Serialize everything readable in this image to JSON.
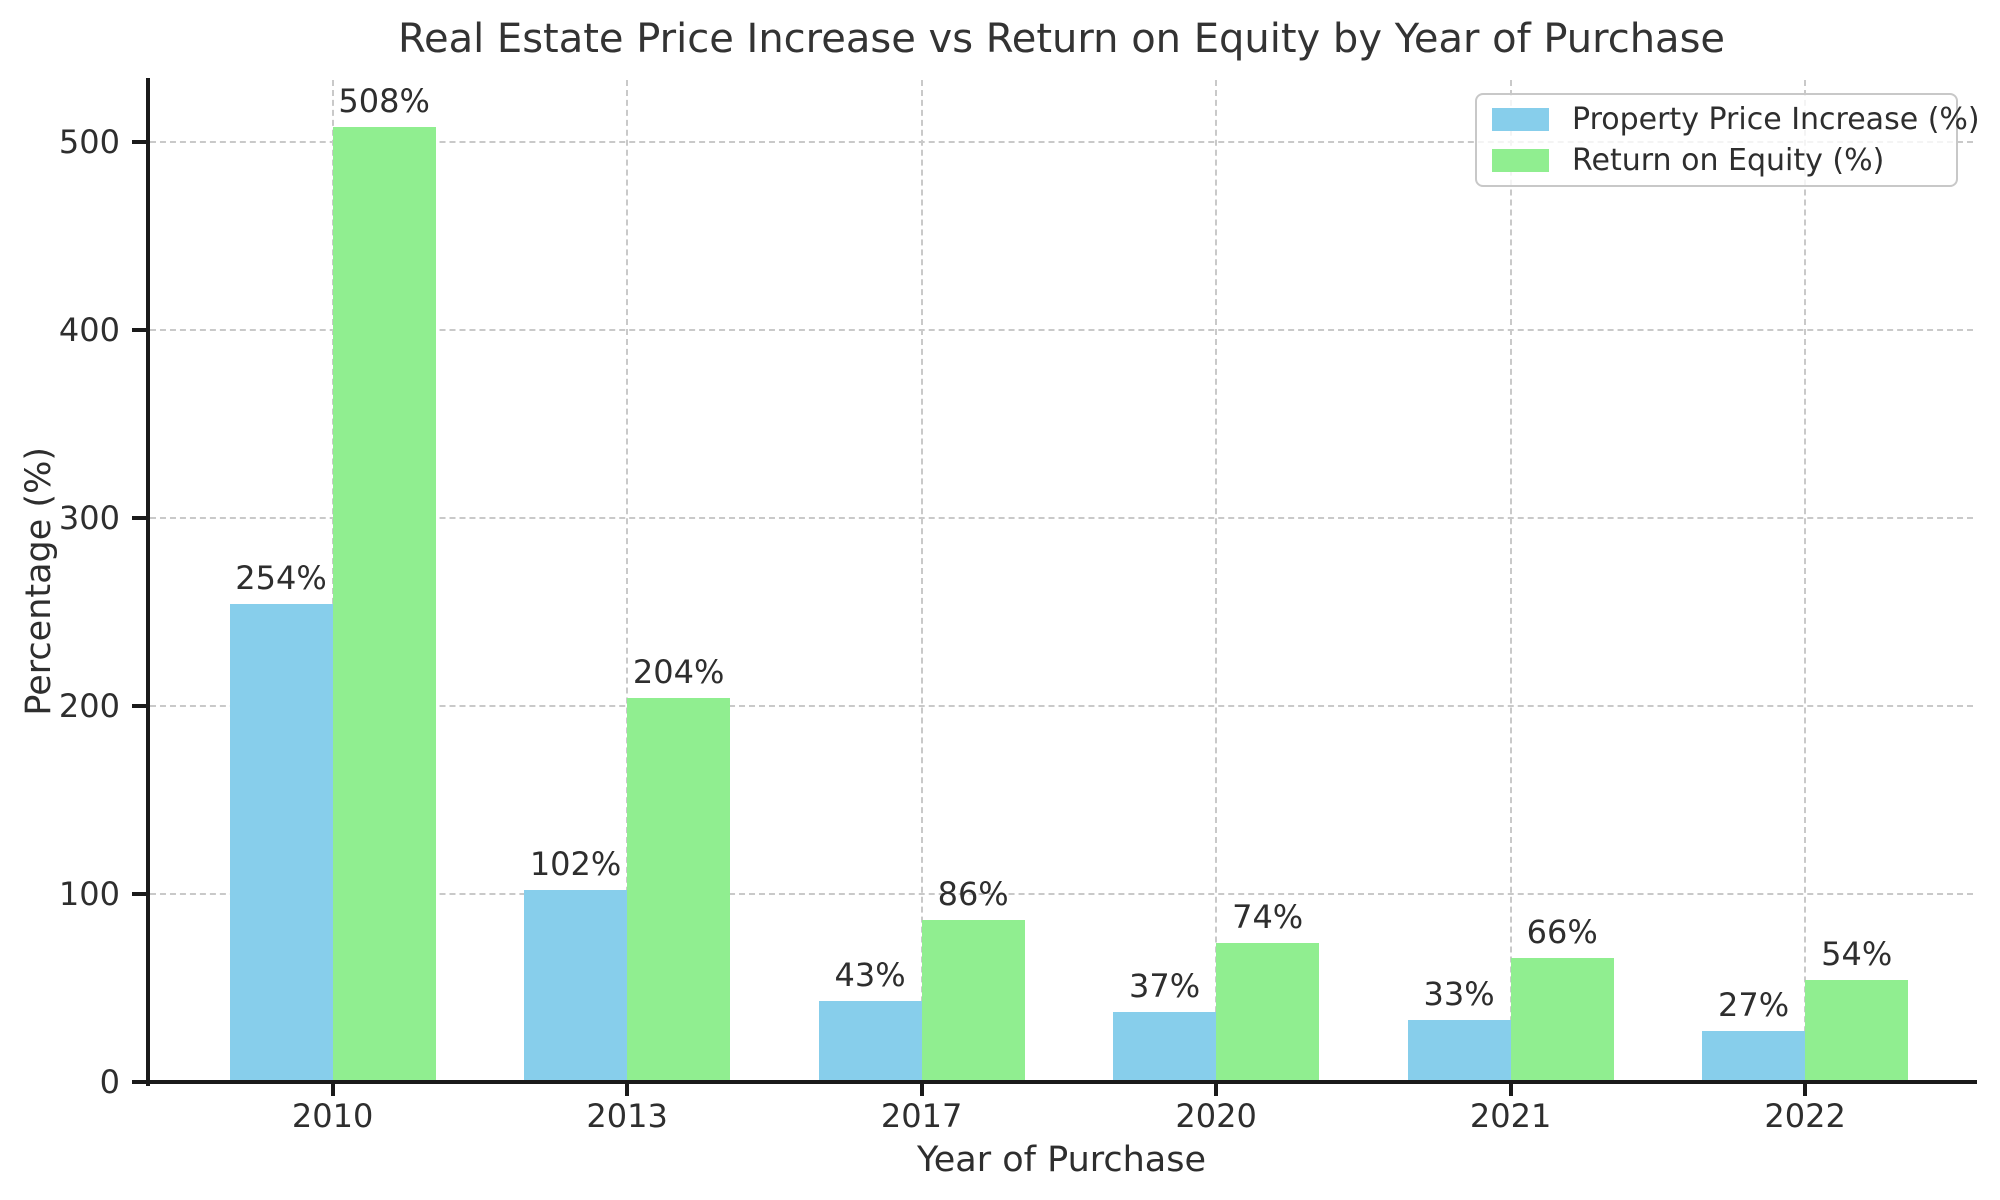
{
  "chart_data": {
    "type": "bar",
    "title": "Real Estate Price Increase vs Return on Equity by Year of Purchase",
    "xlabel": "Year of Purchase",
    "ylabel": "Percentage (%)",
    "categories": [
      "2010",
      "2013",
      "2017",
      "2020",
      "2021",
      "2022"
    ],
    "series": [
      {
        "name": "Property Price Increase (%)",
        "color": "#87CEEB",
        "values": [
          254,
          102,
          43,
          37,
          33,
          27
        ],
        "labels": [
          "254%",
          "102%",
          "43%",
          "37%",
          "33%",
          "27%"
        ]
      },
      {
        "name": "Return on Equity (%)",
        "color": "#90EE90",
        "values": [
          508,
          204,
          86,
          74,
          66,
          54
        ],
        "labels": [
          "508%",
          "204%",
          "86%",
          "74%",
          "66%",
          "54%"
        ]
      }
    ],
    "ytick_labels": [
      "0",
      "100",
      "200",
      "300",
      "400",
      "500"
    ],
    "ytick_values": [
      0,
      100,
      200,
      300,
      400,
      500
    ],
    "ylim": [
      0,
      533
    ],
    "grid": "dashed",
    "legend_position": "upper right"
  },
  "colors": {
    "grid": "#c9c9c9",
    "axis": "#1a1a1a",
    "text": "#2e2e2e",
    "legend_border": "#c8c8c8",
    "background": "#ffffff"
  }
}
